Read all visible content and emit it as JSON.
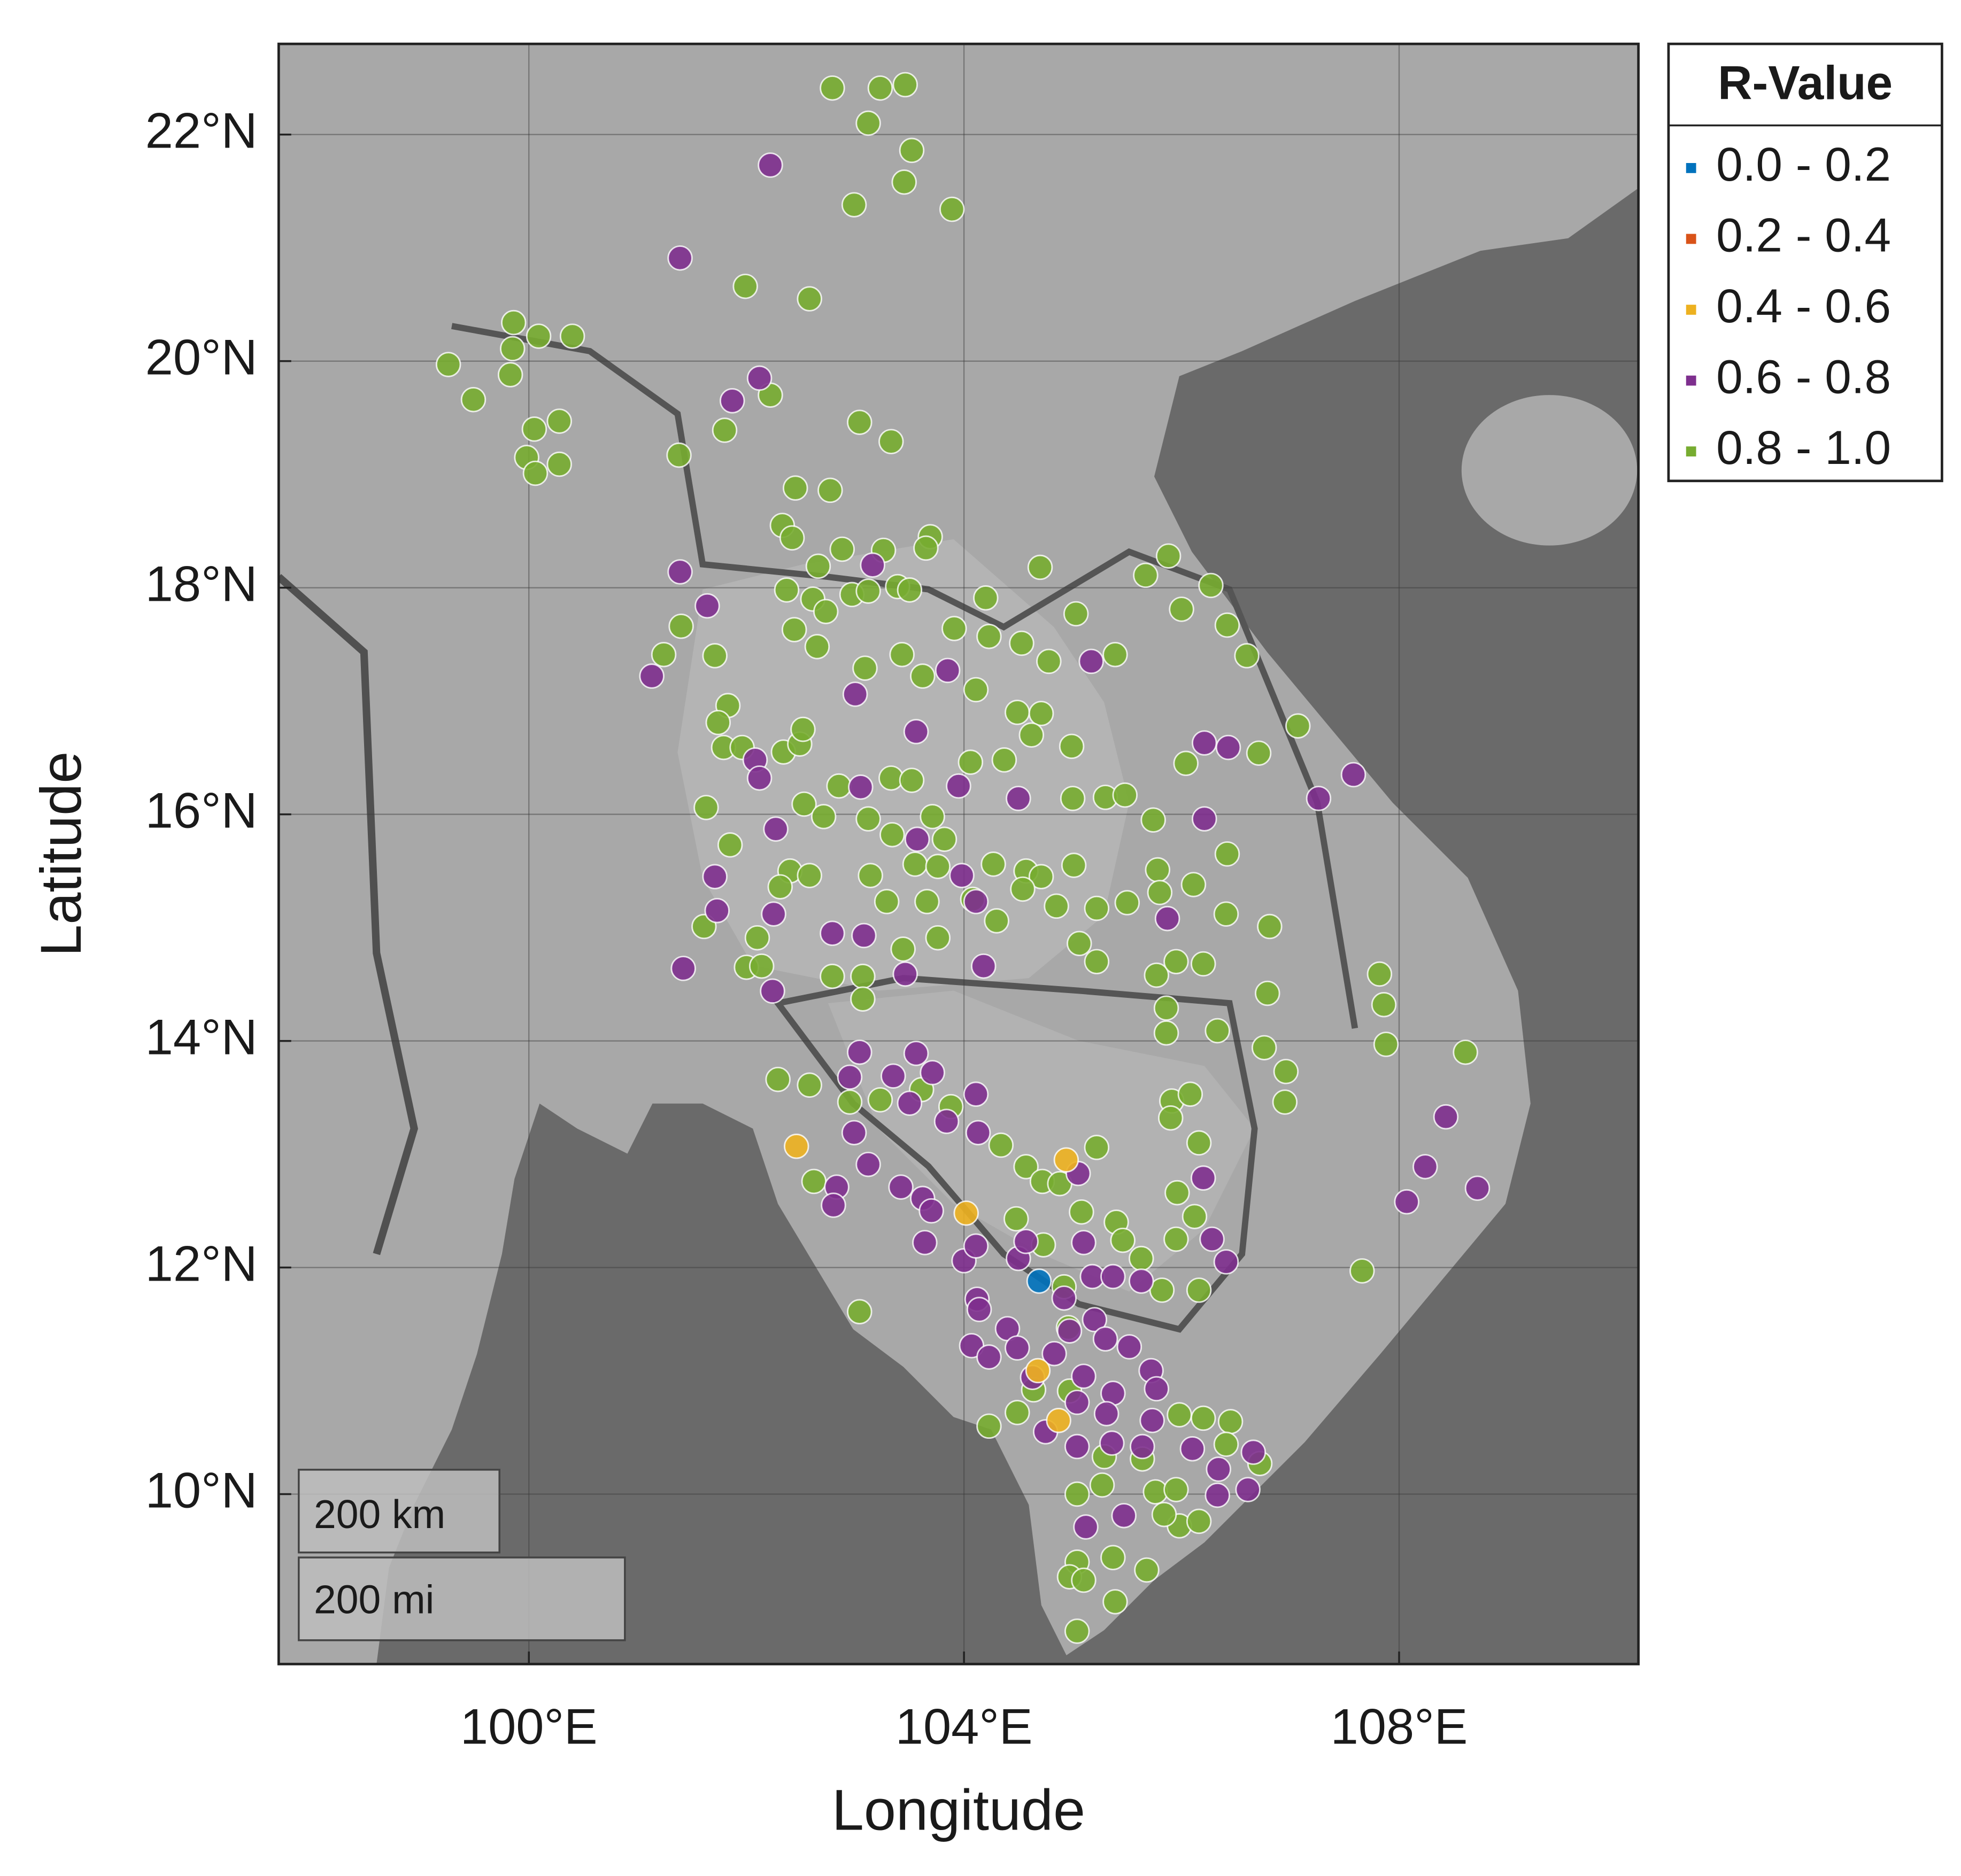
{
  "chart_data": {
    "type": "scatter",
    "xlabel": "Longitude",
    "ylabel": "Latitude",
    "xlim": [
      97.7,
      110.2
    ],
    "ylim": [
      8.5,
      22.8
    ],
    "xticks": [
      {
        "value": 100,
        "label": "100°E"
      },
      {
        "value": 104,
        "label": "104°E"
      },
      {
        "value": 108,
        "label": "108°E"
      }
    ],
    "yticks": [
      {
        "value": 10,
        "label": "10°N"
      },
      {
        "value": 12,
        "label": "12°N"
      },
      {
        "value": 14,
        "label": "14°N"
      },
      {
        "value": 16,
        "label": "16°N"
      },
      {
        "value": 18,
        "label": "18°N"
      },
      {
        "value": 20,
        "label": "20°N"
      },
      {
        "value": 22,
        "label": "22°N"
      }
    ],
    "grid": true,
    "legend": "outside-top-right",
    "legend_title": "R-Value",
    "scale_bars": [
      "200 km",
      "200 mi"
    ],
    "series": [
      {
        "name": "0.0 - 0.2",
        "color": "#0072BD",
        "x": [
          104.69
        ],
        "y": [
          11.88
        ]
      },
      {
        "name": "0.2 - 0.4",
        "color": "#D95319",
        "x": [],
        "y": []
      },
      {
        "name": "0.4 - 0.6",
        "color": "#EDB120",
        "x": [
          102.46,
          104.94,
          104.02,
          104.68,
          104.87
        ],
        "y": [
          13.07,
          12.95,
          12.48,
          11.09,
          10.65
        ]
      },
      {
        "name": "0.6 - 0.8",
        "color": "#7E2F8E",
        "x": [
          102.22,
          101.39,
          102.12,
          101.87,
          101.39,
          101.13,
          101.64,
          103.16,
          103.0,
          103.85,
          103.56,
          102.08,
          102.12,
          102.27,
          103.05,
          103.95,
          104.5,
          103.57,
          103.98,
          101.71,
          101.73,
          102.25,
          101.42,
          102.24,
          102.79,
          103.08,
          103.46,
          104.18,
          104.11,
          105.17,
          106.21,
          106.43,
          106.21,
          107.26,
          107.58,
          105.87,
          103.04,
          102.95,
          103.56,
          103.35,
          103.71,
          103.5,
          103.84,
          104.11,
          104.13,
          102.99,
          103.12,
          102.83,
          102.8,
          103.42,
          103.62,
          103.7,
          103.64,
          104.0,
          104.11,
          104.5,
          104.57,
          105.05,
          105.1,
          105.18,
          105.37,
          105.63,
          106.28,
          106.41,
          106.2,
          108.43,
          108.24,
          108.07,
          108.72,
          104.12,
          104.14,
          104.07,
          104.4,
          104.23,
          104.49,
          104.63,
          104.83,
          104.92,
          104.97,
          105.2,
          105.3,
          105.52,
          105.1,
          105.37,
          105.72,
          105.77,
          105.04,
          104.75,
          105.31,
          105.36,
          105.04,
          105.73,
          105.64,
          106.1,
          106.34,
          106.33,
          106.66,
          106.61,
          105.12,
          105.47
        ],
        "y": [
          21.73,
          20.91,
          19.85,
          19.65,
          18.14,
          17.22,
          17.84,
          18.2,
          17.06,
          17.27,
          16.73,
          16.48,
          16.32,
          15.87,
          16.24,
          16.25,
          16.14,
          15.78,
          15.46,
          15.45,
          15.15,
          15.12,
          14.64,
          14.44,
          14.95,
          14.93,
          14.59,
          14.66,
          15.23,
          17.35,
          16.63,
          16.59,
          15.96,
          16.14,
          16.35,
          15.08,
          13.9,
          13.68,
          13.89,
          13.69,
          13.72,
          13.45,
          13.29,
          13.53,
          13.19,
          13.19,
          12.91,
          12.71,
          12.55,
          12.71,
          12.61,
          12.5,
          12.22,
          12.06,
          12.19,
          12.08,
          12.23,
          12.83,
          12.22,
          11.92,
          11.92,
          11.88,
          12.25,
          12.05,
          12.79,
          13.33,
          12.89,
          12.58,
          12.7,
          11.72,
          11.63,
          11.31,
          11.46,
          11.21,
          11.29,
          11.03,
          11.24,
          11.73,
          11.44,
          11.54,
          11.37,
          11.3,
          11.04,
          10.89,
          11.09,
          10.93,
          10.81,
          10.55,
          10.71,
          10.45,
          10.42,
          10.65,
          10.42,
          10.4,
          10.22,
          9.99,
          10.37,
          10.04,
          9.71,
          9.81
        ]
      },
      {
        "name": "0.8 - 1.0",
        "color": "#77AC30",
        "x": [
          102.79,
          103.23,
          103.46,
          103.12,
          103.52,
          103.45,
          102.99,
          103.89,
          101.99,
          102.58,
          99.86,
          100.09,
          100.4,
          99.85,
          99.26,
          99.83,
          99.49,
          100.28,
          100.05,
          99.98,
          100.28,
          100.06,
          101.8,
          102.22,
          103.04,
          103.33,
          101.38,
          102.45,
          102.77,
          102.33,
          102.42,
          102.66,
          102.88,
          103.26,
          103.69,
          103.65,
          102.37,
          102.61,
          102.73,
          102.97,
          103.12,
          103.39,
          103.5,
          104.2,
          104.7,
          105.03,
          103.91,
          104.23,
          104.53,
          104.78,
          105.39,
          105.67,
          105.88,
          106.0,
          106.27,
          106.42,
          106.6,
          107.07,
          106.71,
          106.04,
          101.4,
          101.24,
          101.71,
          102.44,
          102.65,
          103.09,
          103.43,
          103.62,
          104.11,
          101.83,
          101.74,
          101.79,
          101.96,
          102.34,
          102.49,
          102.52,
          101.63,
          102.53,
          102.71,
          102.85,
          103.12,
          103.33,
          103.52,
          103.34,
          103.71,
          103.82,
          104.06,
          104.49,
          104.71,
          104.62,
          104.37,
          104.99,
          105.0,
          105.3,
          105.48,
          105.74,
          101.85,
          102.4,
          102.31,
          102.58,
          103.14,
          103.29,
          103.55,
          103.76,
          103.66,
          104.27,
          104.08,
          104.57,
          104.71,
          104.54,
          105.01,
          104.85,
          105.22,
          105.5,
          105.78,
          105.8,
          106.11,
          106.42,
          106.41,
          106.81,
          101.61,
          102.1,
          102.0,
          102.14,
          102.79,
          103.07,
          103.07,
          103.44,
          103.76,
          104.3,
          105.06,
          105.22,
          105.77,
          105.95,
          105.86,
          105.86,
          106.2,
          106.79,
          107.82,
          107.86,
          107.88,
          108.61,
          106.76,
          106.96,
          106.95,
          106.33,
          105.91,
          106.08,
          105.9,
          106.16,
          105.96,
          106.12,
          105.95,
          105.82,
          106.16,
          102.29,
          102.58,
          102.62,
          103.04,
          102.95,
          103.23,
          103.61,
          103.88,
          104.34,
          104.57,
          104.72,
          104.88,
          105.22,
          105.08,
          105.4,
          105.46,
          105.63,
          104.48,
          104.73,
          104.92,
          104.96,
          104.64,
          104.23,
          104.49,
          104.97,
          105.98,
          106.2,
          106.45,
          106.41,
          106.72,
          105.29,
          105.64,
          105.27,
          105.04,
          105.76,
          105.95,
          105.98,
          106.16,
          105.84,
          105.04,
          105.37,
          105.68,
          104.97,
          105.1,
          105.39,
          105.04,
          107.66
        ],
        "y": [
          22.41,
          22.41,
          22.44,
          22.1,
          21.86,
          21.58,
          21.38,
          21.34,
          20.66,
          20.55,
          20.34,
          20.22,
          20.22,
          20.11,
          19.97,
          19.88,
          19.66,
          19.47,
          19.4,
          19.15,
          19.09,
          19.01,
          19.39,
          19.7,
          19.46,
          19.29,
          19.17,
          18.88,
          18.86,
          18.55,
          18.44,
          18.19,
          18.34,
          18.33,
          18.45,
          18.35,
          17.98,
          17.9,
          17.79,
          17.94,
          17.97,
          18.01,
          17.98,
          17.91,
          18.18,
          17.77,
          17.64,
          17.57,
          17.51,
          17.35,
          17.41,
          18.11,
          18.28,
          17.81,
          18.02,
          17.67,
          17.4,
          16.78,
          16.54,
          16.45,
          17.66,
          17.41,
          17.4,
          17.63,
          17.48,
          17.29,
          17.41,
          17.22,
          17.1,
          16.96,
          16.81,
          16.59,
          16.59,
          16.55,
          16.62,
          16.75,
          16.06,
          16.09,
          15.98,
          16.25,
          15.96,
          16.32,
          16.3,
          15.82,
          15.98,
          15.78,
          16.46,
          16.9,
          16.89,
          16.7,
          16.48,
          16.6,
          16.14,
          16.15,
          16.17,
          15.95,
          15.73,
          15.5,
          15.36,
          15.46,
          15.46,
          15.23,
          15.56,
          15.54,
          15.23,
          15.56,
          15.25,
          15.5,
          15.45,
          15.34,
          15.55,
          15.19,
          15.17,
          15.22,
          15.51,
          15.31,
          15.38,
          15.65,
          15.12,
          15.01,
          15.01,
          14.91,
          14.65,
          14.66,
          14.57,
          14.57,
          14.37,
          14.81,
          14.91,
          15.06,
          14.86,
          14.7,
          14.58,
          14.7,
          14.29,
          14.07,
          14.68,
          14.42,
          14.59,
          14.32,
          13.97,
          13.9,
          13.94,
          13.73,
          13.46,
          14.09,
          13.47,
          13.53,
          13.32,
          13.1,
          12.66,
          12.45,
          12.25,
          11.8,
          11.8,
          13.66,
          13.61,
          12.76,
          11.61,
          13.46,
          13.48,
          13.57,
          13.42,
          13.08,
          12.89,
          12.76,
          12.74,
          13.06,
          12.49,
          12.4,
          12.24,
          12.08,
          12.43,
          12.2,
          11.83,
          11.47,
          10.92,
          10.6,
          10.72,
          10.91,
          10.7,
          10.67,
          10.64,
          10.44,
          10.27,
          10.33,
          10.31,
          10.08,
          10.0,
          10.02,
          10.04,
          9.72,
          9.76,
          9.82,
          9.4,
          9.44,
          9.33,
          9.27,
          9.24,
          9.05,
          8.79,
          11.97
        ]
      }
    ]
  }
}
